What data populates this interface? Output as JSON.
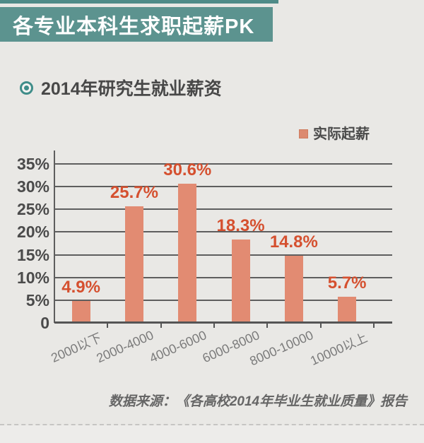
{
  "page": {
    "background": "#e9e8e5"
  },
  "header": {
    "title": "各专业本科生求职起薪PK",
    "bar_color": "#5c938f",
    "text_color": "#ffffff"
  },
  "subtitle": {
    "text": "2014年研究生就业薪资",
    "icon": "bullseye-icon",
    "icon_color": "#3f8d89"
  },
  "legend": {
    "label": "实际起薪",
    "swatch_color": "#dc8a6f"
  },
  "chart_data": {
    "type": "bar",
    "title": "2014年研究生就业薪资",
    "categories": [
      "2000以下",
      "2000-4000",
      "4000-6000",
      "6000-8000",
      "8000-10000",
      "10000以上"
    ],
    "series": [
      {
        "name": "实际起薪",
        "values": [
          4.9,
          25.7,
          30.6,
          18.3,
          14.8,
          5.7
        ]
      }
    ],
    "value_labels": [
      "4.9%",
      "25.7%",
      "30.6%",
      "18.3%",
      "14.8%",
      "5.7%"
    ],
    "y_ticks": [
      "0",
      "5%",
      "10%",
      "15%",
      "20%",
      "25%",
      "30%",
      "35%"
    ],
    "y_tick_values": [
      0,
      5,
      10,
      15,
      20,
      25,
      30,
      35
    ],
    "ylim": [
      0,
      35
    ],
    "grid": true,
    "legend_position": "top-right",
    "bar_color": "#e28b72",
    "label_color": "#d5502f",
    "xlabel": "",
    "ylabel": ""
  },
  "source": {
    "text": "数据来源：《各高校2014年毕业生就业质量》报告"
  }
}
